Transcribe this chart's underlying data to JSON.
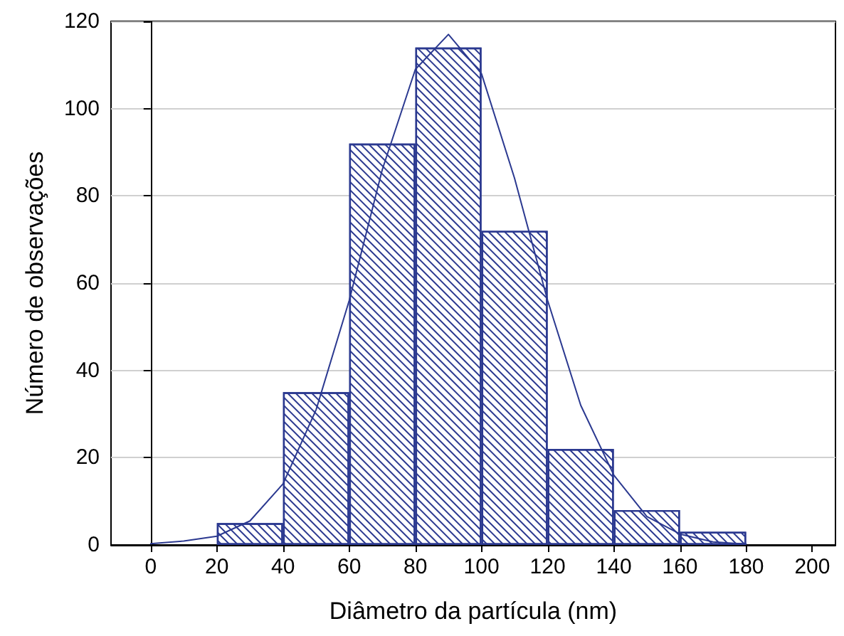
{
  "chart_data": {
    "type": "histogram",
    "xlabel": "Diâmetro da partícula (nm)",
    "ylabel": "Número de observações",
    "bins": [
      20,
      40,
      60,
      80,
      100,
      120,
      140,
      160,
      180
    ],
    "values": [
      5,
      35,
      92,
      114,
      72,
      22,
      8,
      3
    ],
    "color": "#2b3990",
    "series": [
      {
        "type": "line",
        "color": "#2b3990",
        "x": [
          0,
          10,
          20,
          30,
          40,
          50,
          60,
          70,
          80,
          90,
          100,
          110,
          120,
          130,
          140,
          150,
          160,
          170,
          180
        ],
        "values": [
          0.3,
          0.9,
          2,
          5.5,
          14,
          31,
          56,
          86,
          109,
          117,
          108,
          84,
          56,
          32,
          16,
          6.5,
          2.5,
          0.7,
          0.2
        ]
      }
    ],
    "xlim": [
      -12,
      207
    ],
    "xticks": [
      0,
      20,
      40,
      60,
      80,
      100,
      120,
      140,
      160,
      180,
      200
    ],
    "ylim": [
      0,
      120
    ],
    "yticks": [
      0,
      20,
      40,
      60,
      80,
      100,
      120
    ],
    "grid": "y",
    "marker": "none",
    "line_style": "solid"
  }
}
